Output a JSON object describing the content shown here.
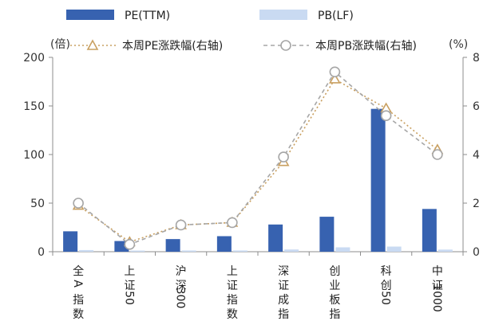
{
  "chart_data": {
    "type": "bar",
    "categories": [
      "全A指数",
      "上证50",
      "沪深300",
      "上证指数",
      "深证成指",
      "创业板指",
      "科创50",
      "中证1000"
    ],
    "category_label_lines": [
      [
        "全",
        "A",
        "指",
        "数"
      ],
      [
        "上",
        "证",
        "50"
      ],
      [
        "沪",
        "深",
        "300"
      ],
      [
        "上",
        "证",
        "指",
        "数"
      ],
      [
        "深",
        "证",
        "成",
        "指"
      ],
      [
        "创",
        "业",
        "板",
        "指"
      ],
      [
        "科",
        "创",
        "50"
      ],
      [
        "中",
        "证",
        "1000"
      ]
    ],
    "series": [
      {
        "name": "PE(TTM)",
        "kind": "bar",
        "axis": "left",
        "color": "#3762b0",
        "values": [
          21,
          11,
          13,
          16,
          28,
          36,
          147,
          44
        ]
      },
      {
        "name": "PB(LF)",
        "kind": "bar",
        "axis": "left",
        "color": "#c9daf2",
        "values": [
          1.7,
          1.2,
          1.3,
          1.3,
          2.3,
          4.5,
          5.3,
          2.2
        ]
      },
      {
        "name": "本周PE涨跌幅(右轴)",
        "kind": "line",
        "axis": "right",
        "color": "#c9a061",
        "line_style": "dotted",
        "marker": "triangle",
        "values": [
          1.9,
          0.4,
          1.1,
          1.2,
          3.7,
          7.1,
          5.9,
          4.2
        ]
      },
      {
        "name": "本周PB涨跌幅(右轴)",
        "kind": "line",
        "axis": "right",
        "color": "#a6a6a6",
        "line_style": "dashed",
        "marker": "circle",
        "values": [
          2.0,
          0.3,
          1.1,
          1.2,
          3.9,
          7.4,
          5.6,
          4.0
        ]
      }
    ],
    "y_left": {
      "min": 0,
      "max": 200,
      "ticks": [
        0,
        50,
        100,
        150,
        200
      ],
      "unit_label": "(倍)"
    },
    "y_right": {
      "min": 0,
      "max": 8,
      "ticks": [
        0,
        2,
        4,
        6,
        8
      ],
      "unit_label": "(%)"
    },
    "grid": false,
    "legend_position": "top"
  }
}
